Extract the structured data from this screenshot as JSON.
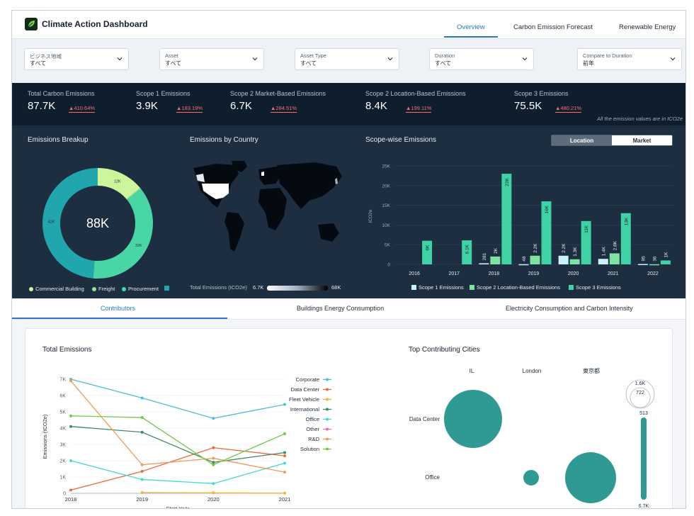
{
  "app": {
    "title": "Climate Action Dashboard"
  },
  "top_tabs": [
    "Overview",
    "Carbon Emission Forecast",
    "Renewable Energy"
  ],
  "filters": [
    {
      "label": "ビジネス地域",
      "value": "すべて"
    },
    {
      "label": "Asset",
      "value": "すべて"
    },
    {
      "label": "Asset Type",
      "value": "すべて"
    },
    {
      "label": "Duration",
      "value": "すべて"
    },
    {
      "label": "Compare to Duration",
      "value": "前年"
    }
  ],
  "kpis": [
    {
      "label": "Total Carbon Emissions",
      "value": "87.7K",
      "delta": "▲410.64%"
    },
    {
      "label": "Scope 1 Emissions",
      "value": "3.9K",
      "delta": "▲183.19%"
    },
    {
      "label": "Scope 2 Market-Based Emissions",
      "value": "6.7K",
      "delta": "▲284.51%"
    },
    {
      "label": "Scope 2 Location-Based Emissions",
      "value": "8.4K",
      "delta": "▲199.11%"
    },
    {
      "label": "Scope 3 Emissions",
      "value": "75.5K",
      "delta": "▲480.21%"
    }
  ],
  "kpi_note": "All the emission values are in tCO2e",
  "breakup": {
    "title": "Emissions Breakup",
    "center": "88K",
    "slices": [
      {
        "name": "Commercial Building",
        "label": "12K",
        "value": 12,
        "color": "#cdf59b"
      },
      {
        "name": "Freight",
        "label": "",
        "value": 0.3,
        "color": "#8ee59a"
      },
      {
        "name": "Procurement",
        "label": "32K",
        "value": 32,
        "color": "#49d6a5"
      },
      {
        "name": "",
        "label": "42K",
        "value": 42,
        "color": "#20a6ac"
      }
    ]
  },
  "country": {
    "title": "Emissions by Country",
    "legend_label": "Total Emissions (tCO2e)",
    "min": "6.7K",
    "max": "68K"
  },
  "scope": {
    "title": "Scope-wise Emissions",
    "toggle": [
      "Location",
      "Market"
    ],
    "active": "Location",
    "ylabel": "tCO2e",
    "legend": [
      "Scope 1 Emissions",
      "Scope 2 Location-Based Emissions",
      "Scope 3 Emissions"
    ]
  },
  "sub_tabs": [
    "Contributors",
    "Buildings Energy Consumption",
    "Electricity Consumption and Carbon Intensity"
  ],
  "total": {
    "title": "Total Emissions",
    "xlabel": "Start Year",
    "ylabel": "Emissions (tCO2e)"
  },
  "cities": {
    "title": "Top Contributing Cities",
    "columns": [
      "IL",
      "London",
      "東京都"
    ],
    "rows": [
      "Data Center",
      "Office"
    ],
    "labels": [
      "1.6K",
      "722",
      "513",
      "6.7K"
    ]
  },
  "chart_data": [
    {
      "type": "pie",
      "title": "Emissions Breakup",
      "categories": [
        "Commercial Building",
        "Freight",
        "Procurement",
        ""
      ],
      "values": [
        12000,
        300,
        32000,
        42000
      ]
    },
    {
      "type": "bar",
      "title": "Scope-wise Emissions",
      "ylabel": "tCO2e",
      "ylim": [
        0,
        25000
      ],
      "categories": [
        "2016",
        "2017",
        "2018",
        "2019",
        "2020",
        "2021",
        "2022"
      ],
      "series": [
        {
          "name": "Scope 1 Emissions",
          "values": [
            0,
            0,
            281,
            48,
            2200,
            1400,
            95
          ],
          "labels": [
            "",
            "",
            "281",
            "48",
            "2.2K",
            "1.4K",
            "95"
          ],
          "color": "#c9f1ff"
        },
        {
          "name": "Scope 2 Location-Based Emissions",
          "values": [
            0,
            0,
            2000,
            2200,
            1300,
            2800,
            36
          ],
          "labels": [
            "",
            "",
            "2K",
            "2.2K",
            "1.3K",
            "2.8K",
            "36"
          ],
          "color": "#7ee39f"
        },
        {
          "name": "Scope 3 Emissions",
          "values": [
            6000,
            6100,
            23000,
            16000,
            11000,
            13000,
            1000
          ],
          "labels": [
            "6K",
            "6.1K",
            "23K",
            "16K",
            "11K",
            "13K",
            "1K"
          ],
          "color": "#3ed2a5"
        }
      ],
      "yticks": [
        "0",
        "5K",
        "10K",
        "15K",
        "20K",
        "25K"
      ]
    },
    {
      "type": "line",
      "title": "Total Emissions",
      "xlabel": "Start Year",
      "ylabel": "Emissions (tCO2e)",
      "ylim": [
        0,
        7000
      ],
      "x": [
        "2018",
        "2019",
        "2020",
        "2021"
      ],
      "yticks": [
        "0",
        "1K",
        "2K",
        "3K",
        "4K",
        "5K",
        "6K",
        "7K"
      ],
      "series": [
        {
          "name": "Corporate",
          "color": "#4cbfd6",
          "values": [
            7000,
            5850,
            4600,
            5450
          ]
        },
        {
          "name": "Data Center",
          "color": "#ec6a3b",
          "values": [
            200,
            1350,
            2800,
            2300
          ]
        },
        {
          "name": "Fleet Vehicle",
          "color": "#f5b23d",
          "values": [
            null,
            50,
            30,
            10
          ]
        },
        {
          "name": "International",
          "color": "#3c8d63",
          "values": [
            4100,
            3750,
            1900,
            2500
          ]
        },
        {
          "name": "Office",
          "color": "#47d7d7",
          "values": [
            2000,
            850,
            600,
            1850
          ]
        },
        {
          "name": "Other",
          "color": "#e76db6",
          "values": [
            null,
            null,
            null,
            null
          ]
        },
        {
          "name": "R&D",
          "color": "#f09a55",
          "values": [
            6900,
            1750,
            2150,
            1300
          ]
        },
        {
          "name": "Solution",
          "color": "#6fca45",
          "values": [
            4750,
            4650,
            1750,
            3650
          ]
        }
      ]
    }
  ]
}
